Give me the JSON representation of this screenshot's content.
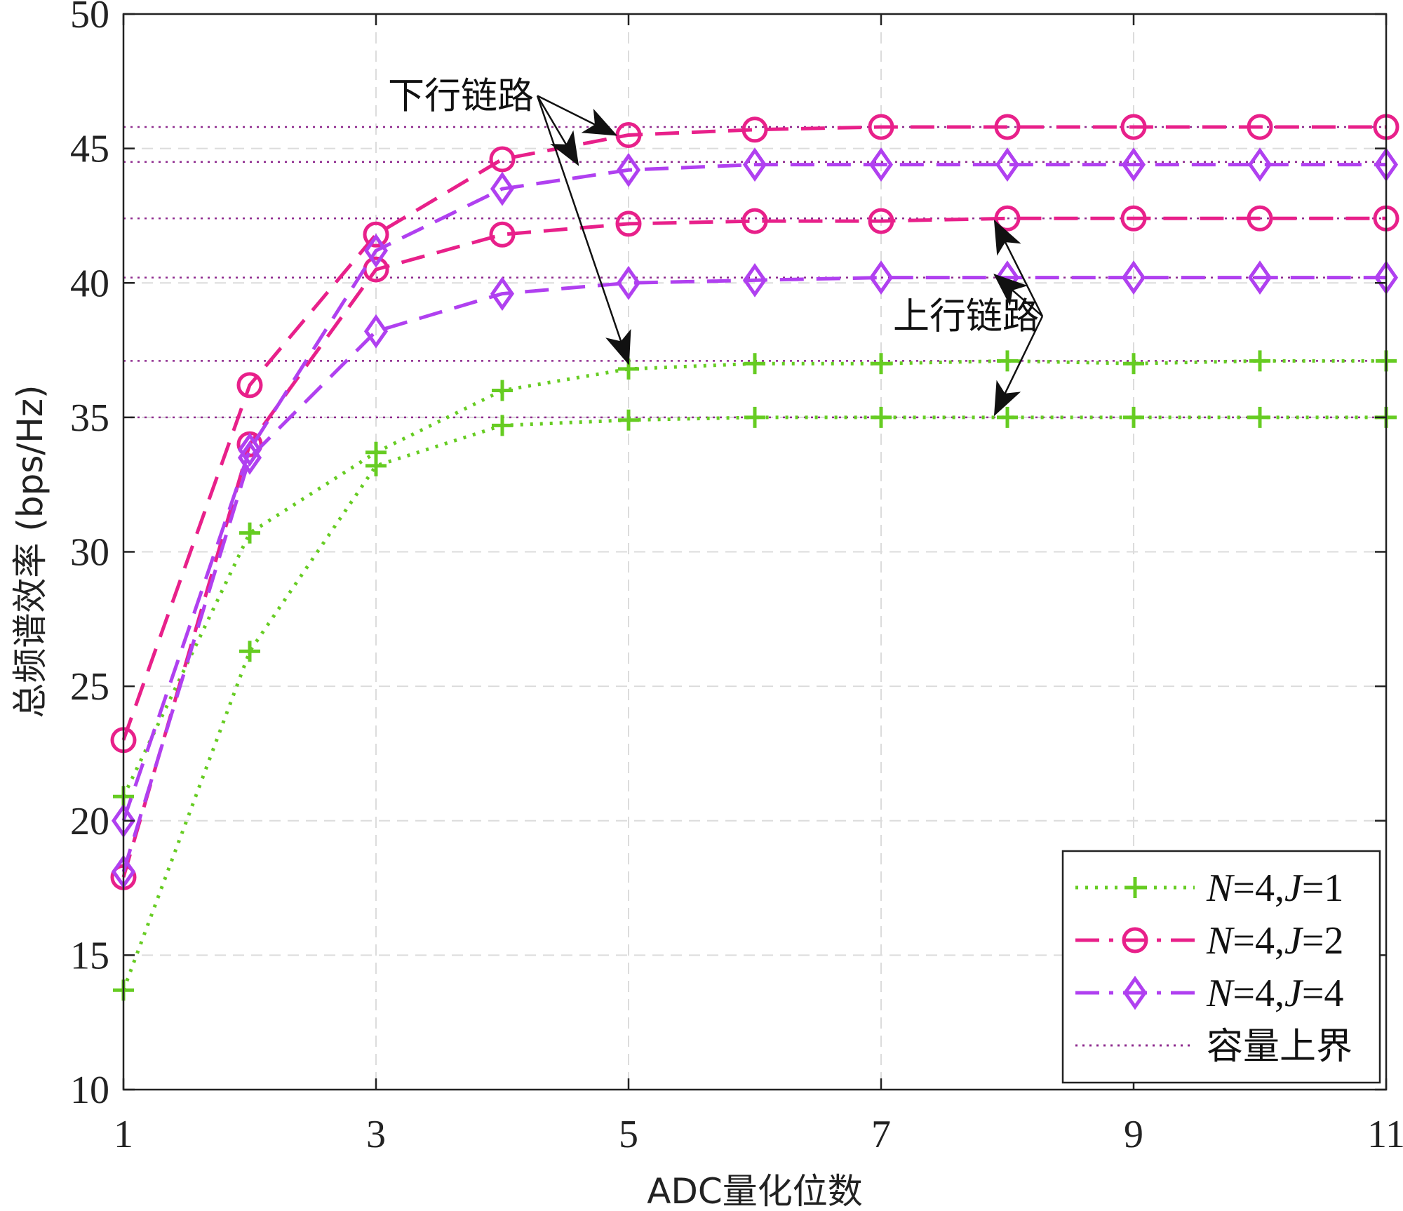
{
  "chart_data": {
    "type": "line",
    "xlabel": "ADC量化位数",
    "ylabel": "总频谱效率 (bps/Hz)",
    "xlim": [
      1,
      11
    ],
    "ylim": [
      10,
      50
    ],
    "xticks": [
      1,
      3,
      5,
      7,
      9,
      11
    ],
    "yticks": [
      10,
      15,
      20,
      25,
      30,
      35,
      40,
      45,
      50
    ],
    "grid": true,
    "legend_position": "bottom-right",
    "x": [
      1,
      2,
      3,
      4,
      5,
      6,
      7,
      8,
      9,
      10,
      11
    ],
    "legend": [
      {
        "label": "N=4,J=1",
        "italic_parts": [
          "N",
          "J"
        ],
        "color": "#66cc22",
        "dash": "dotted",
        "marker": "plus"
      },
      {
        "label": "N=4,J=2",
        "italic_parts": [
          "N",
          "J"
        ],
        "color": "#e8208a",
        "dash": "dashdot",
        "marker": "circle"
      },
      {
        "label": "N=4,J=4",
        "italic_parts": [
          "N",
          "J"
        ],
        "color": "#b040f0",
        "dash": "dashdot",
        "marker": "diamond"
      },
      {
        "label": "容量上界",
        "color": "#8e2a8e",
        "dash": "dotted",
        "marker": "none"
      }
    ],
    "series": [
      {
        "legend_ref": 0,
        "link": "downlink",
        "color": "#66cc22",
        "dash": "dotted",
        "marker": "plus",
        "values": [
          20.9,
          30.7,
          33.7,
          36.0,
          36.8,
          37.0,
          37.0,
          37.1,
          37.0,
          37.1,
          37.1
        ]
      },
      {
        "legend_ref": 0,
        "link": "uplink",
        "color": "#66cc22",
        "dash": "dotted",
        "marker": "plus",
        "values": [
          13.7,
          26.3,
          33.2,
          34.7,
          34.9,
          35.0,
          35.0,
          35.0,
          35.0,
          35.0,
          35.0
        ]
      },
      {
        "legend_ref": 1,
        "link": "downlink",
        "color": "#e8208a",
        "dash": "dashed",
        "marker": "circle",
        "values": [
          23.0,
          36.2,
          41.8,
          44.6,
          45.5,
          45.7,
          45.8,
          45.8,
          45.8,
          45.8,
          45.8
        ]
      },
      {
        "legend_ref": 1,
        "link": "uplink",
        "color": "#e8208a",
        "dash": "dashed",
        "marker": "circle",
        "values": [
          17.9,
          34.0,
          40.5,
          41.8,
          42.2,
          42.3,
          42.3,
          42.4,
          42.4,
          42.4,
          42.4
        ]
      },
      {
        "legend_ref": 2,
        "link": "downlink",
        "color": "#b040f0",
        "dash": "dashed",
        "marker": "diamond",
        "values": [
          20.0,
          33.8,
          41.2,
          43.5,
          44.2,
          44.4,
          44.4,
          44.4,
          44.4,
          44.4,
          44.4
        ]
      },
      {
        "legend_ref": 2,
        "link": "uplink",
        "color": "#b040f0",
        "dash": "dashed",
        "marker": "diamond",
        "values": [
          18.1,
          33.5,
          38.2,
          39.6,
          40.0,
          40.1,
          40.2,
          40.2,
          40.2,
          40.2,
          40.2
        ]
      }
    ],
    "upper_bounds": {
      "legend_ref": 3,
      "color": "#8e2a8e",
      "values": [
        45.8,
        44.5,
        42.4,
        40.2,
        37.1,
        35.0
      ]
    },
    "annotations": [
      {
        "text": "下行链路",
        "anchor": [
          3.0,
          46.7
        ],
        "targets": [
          [
            4.9,
            45.5
          ],
          [
            4.6,
            44.4
          ],
          [
            5.0,
            37.0
          ]
        ]
      },
      {
        "text": "上行链路",
        "anchor": [
          7.0,
          38.5
        ],
        "targets": [
          [
            7.9,
            42.3
          ],
          [
            7.9,
            40.3
          ],
          [
            7.9,
            35.1
          ]
        ]
      }
    ]
  }
}
